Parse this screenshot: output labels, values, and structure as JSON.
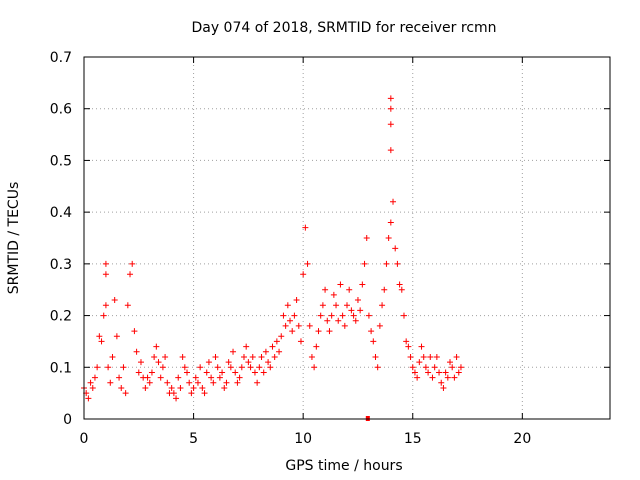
{
  "chart_data": {
    "type": "scatter",
    "title": "Day 074 of 2018, SRMTID for receiver rcmn",
    "xlabel": "GPS time / hours",
    "ylabel": "SRMTID / TECUs",
    "xlim": [
      0,
      24
    ],
    "ylim": [
      0,
      0.7
    ],
    "xticks": [
      0,
      5,
      10,
      15,
      20
    ],
    "yticks": [
      0,
      0.1,
      0.2,
      0.3,
      0.4,
      0.5,
      0.6,
      0.7
    ],
    "xtick_labels": [
      "0",
      "5",
      "10",
      "15",
      "20"
    ],
    "ytick_labels": [
      "0",
      "0.1",
      "0.2",
      "0.3",
      "0.4",
      "0.5",
      "0.6",
      "0.7"
    ],
    "grid": true,
    "marker": "+",
    "color": "#ff0000",
    "series": [
      {
        "name": "SRMTID",
        "points": [
          [
            0.0,
            0.06
          ],
          [
            0.1,
            0.05
          ],
          [
            0.2,
            0.04
          ],
          [
            0.3,
            0.07
          ],
          [
            0.4,
            0.06
          ],
          [
            0.5,
            0.08
          ],
          [
            0.6,
            0.1
          ],
          [
            0.7,
            0.16
          ],
          [
            0.8,
            0.15
          ],
          [
            0.9,
            0.2
          ],
          [
            1.0,
            0.22
          ],
          [
            1.0,
            0.3
          ],
          [
            1.0,
            0.28
          ],
          [
            1.1,
            0.1
          ],
          [
            1.2,
            0.07
          ],
          [
            1.3,
            0.12
          ],
          [
            1.4,
            0.23
          ],
          [
            1.5,
            0.16
          ],
          [
            1.6,
            0.08
          ],
          [
            1.7,
            0.06
          ],
          [
            1.8,
            0.1
          ],
          [
            1.9,
            0.05
          ],
          [
            2.0,
            0.22
          ],
          [
            2.1,
            0.28
          ],
          [
            2.2,
            0.3
          ],
          [
            2.3,
            0.17
          ],
          [
            2.4,
            0.13
          ],
          [
            2.5,
            0.09
          ],
          [
            2.6,
            0.11
          ],
          [
            2.7,
            0.08
          ],
          [
            2.8,
            0.06
          ],
          [
            2.9,
            0.08
          ],
          [
            3.0,
            0.07
          ],
          [
            3.1,
            0.09
          ],
          [
            3.2,
            0.12
          ],
          [
            3.3,
            0.14
          ],
          [
            3.4,
            0.11
          ],
          [
            3.5,
            0.08
          ],
          [
            3.6,
            0.1
          ],
          [
            3.7,
            0.12
          ],
          [
            3.8,
            0.07
          ],
          [
            3.9,
            0.05
          ],
          [
            4.0,
            0.06
          ],
          [
            4.1,
            0.05
          ],
          [
            4.2,
            0.04
          ],
          [
            4.3,
            0.08
          ],
          [
            4.4,
            0.06
          ],
          [
            4.5,
            0.12
          ],
          [
            4.6,
            0.1
          ],
          [
            4.7,
            0.09
          ],
          [
            4.8,
            0.07
          ],
          [
            4.9,
            0.05
          ],
          [
            5.0,
            0.06
          ],
          [
            5.1,
            0.08
          ],
          [
            5.2,
            0.07
          ],
          [
            5.3,
            0.1
          ],
          [
            5.4,
            0.06
          ],
          [
            5.5,
            0.05
          ],
          [
            5.6,
            0.09
          ],
          [
            5.7,
            0.11
          ],
          [
            5.8,
            0.08
          ],
          [
            5.9,
            0.07
          ],
          [
            6.0,
            0.12
          ],
          [
            6.1,
            0.1
          ],
          [
            6.2,
            0.08
          ],
          [
            6.3,
            0.09
          ],
          [
            6.4,
            0.06
          ],
          [
            6.5,
            0.07
          ],
          [
            6.6,
            0.11
          ],
          [
            6.7,
            0.1
          ],
          [
            6.8,
            0.13
          ],
          [
            6.9,
            0.09
          ],
          [
            7.0,
            0.07
          ],
          [
            7.1,
            0.08
          ],
          [
            7.2,
            0.1
          ],
          [
            7.3,
            0.12
          ],
          [
            7.4,
            0.14
          ],
          [
            7.5,
            0.11
          ],
          [
            7.6,
            0.1
          ],
          [
            7.7,
            0.12
          ],
          [
            7.8,
            0.09
          ],
          [
            7.9,
            0.07
          ],
          [
            8.0,
            0.1
          ],
          [
            8.1,
            0.12
          ],
          [
            8.2,
            0.09
          ],
          [
            8.3,
            0.13
          ],
          [
            8.4,
            0.11
          ],
          [
            8.5,
            0.1
          ],
          [
            8.6,
            0.14
          ],
          [
            8.7,
            0.12
          ],
          [
            8.8,
            0.15
          ],
          [
            8.9,
            0.13
          ],
          [
            9.0,
            0.16
          ],
          [
            9.1,
            0.2
          ],
          [
            9.2,
            0.18
          ],
          [
            9.3,
            0.22
          ],
          [
            9.4,
            0.19
          ],
          [
            9.5,
            0.17
          ],
          [
            9.6,
            0.2
          ],
          [
            9.7,
            0.23
          ],
          [
            9.8,
            0.18
          ],
          [
            9.9,
            0.15
          ],
          [
            10.0,
            0.28
          ],
          [
            10.1,
            0.37
          ],
          [
            10.2,
            0.3
          ],
          [
            10.3,
            0.18
          ],
          [
            10.4,
            0.12
          ],
          [
            10.5,
            0.1
          ],
          [
            10.6,
            0.14
          ],
          [
            10.7,
            0.17
          ],
          [
            10.8,
            0.2
          ],
          [
            10.9,
            0.22
          ],
          [
            11.0,
            0.25
          ],
          [
            11.1,
            0.19
          ],
          [
            11.2,
            0.17
          ],
          [
            11.3,
            0.2
          ],
          [
            11.4,
            0.24
          ],
          [
            11.5,
            0.22
          ],
          [
            11.6,
            0.19
          ],
          [
            11.7,
            0.26
          ],
          [
            11.8,
            0.2
          ],
          [
            11.9,
            0.18
          ],
          [
            12.0,
            0.22
          ],
          [
            12.1,
            0.25
          ],
          [
            12.2,
            0.21
          ],
          [
            12.3,
            0.2
          ],
          [
            12.4,
            0.19
          ],
          [
            12.5,
            0.23
          ],
          [
            12.6,
            0.21
          ],
          [
            12.7,
            0.26
          ],
          [
            12.8,
            0.3
          ],
          [
            12.9,
            0.35
          ],
          [
            13.0,
            0.2
          ],
          [
            13.1,
            0.17
          ],
          [
            13.2,
            0.15
          ],
          [
            13.3,
            0.12
          ],
          [
            13.4,
            0.1
          ],
          [
            13.5,
            0.18
          ],
          [
            13.6,
            0.22
          ],
          [
            13.7,
            0.25
          ],
          [
            13.8,
            0.3
          ],
          [
            13.9,
            0.35
          ],
          [
            14.0,
            0.38
          ],
          [
            14.0,
            0.52
          ],
          [
            14.0,
            0.57
          ],
          [
            14.0,
            0.6
          ],
          [
            14.0,
            0.62
          ],
          [
            14.1,
            0.42
          ],
          [
            14.2,
            0.33
          ],
          [
            14.3,
            0.3
          ],
          [
            14.4,
            0.26
          ],
          [
            14.5,
            0.25
          ],
          [
            14.6,
            0.2
          ],
          [
            14.7,
            0.15
          ],
          [
            14.8,
            0.14
          ],
          [
            14.9,
            0.12
          ],
          [
            15.0,
            0.1
          ],
          [
            15.1,
            0.09
          ],
          [
            15.2,
            0.08
          ],
          [
            15.3,
            0.11
          ],
          [
            15.4,
            0.14
          ],
          [
            15.5,
            0.12
          ],
          [
            15.6,
            0.1
          ],
          [
            15.7,
            0.09
          ],
          [
            15.8,
            0.12
          ],
          [
            15.9,
            0.08
          ],
          [
            16.0,
            0.1
          ],
          [
            16.1,
            0.12
          ],
          [
            16.2,
            0.09
          ],
          [
            16.3,
            0.07
          ],
          [
            16.4,
            0.06
          ],
          [
            16.5,
            0.09
          ],
          [
            16.6,
            0.08
          ],
          [
            16.7,
            0.11
          ],
          [
            16.8,
            0.1
          ],
          [
            16.9,
            0.08
          ],
          [
            17.0,
            0.12
          ],
          [
            17.1,
            0.09
          ],
          [
            17.2,
            0.1
          ]
        ]
      }
    ],
    "outliers": [
      [
        12.95,
        0.0
      ]
    ]
  }
}
